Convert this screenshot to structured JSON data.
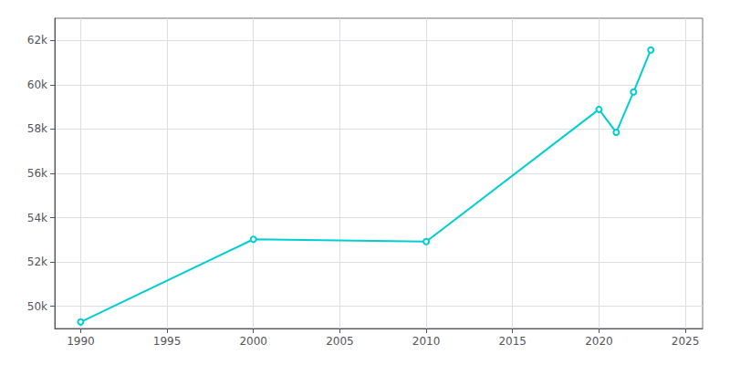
{
  "chart_data": {
    "type": "line",
    "x": [
      1990,
      2000,
      2010,
      2020,
      2021,
      2022,
      2023
    ],
    "values": [
      49295,
      53025,
      52920,
      58888,
      57850,
      59674,
      61570
    ],
    "color": "#00CED1",
    "xlim": [
      1988.5,
      2026
    ],
    "xticks": [
      1990,
      1995,
      2000,
      2005,
      2010,
      2015,
      2020,
      2025
    ],
    "ylim": [
      49000,
      63000
    ],
    "yticks": [
      {
        "value": 50000,
        "label": "50k"
      },
      {
        "value": 52000,
        "label": "52k"
      },
      {
        "value": 54000,
        "label": "54k"
      },
      {
        "value": 56000,
        "label": "56k"
      },
      {
        "value": 58000,
        "label": "58k"
      },
      {
        "value": 60000,
        "label": "60k"
      },
      {
        "value": 62000,
        "label": "62k"
      }
    ],
    "grid": true
  }
}
